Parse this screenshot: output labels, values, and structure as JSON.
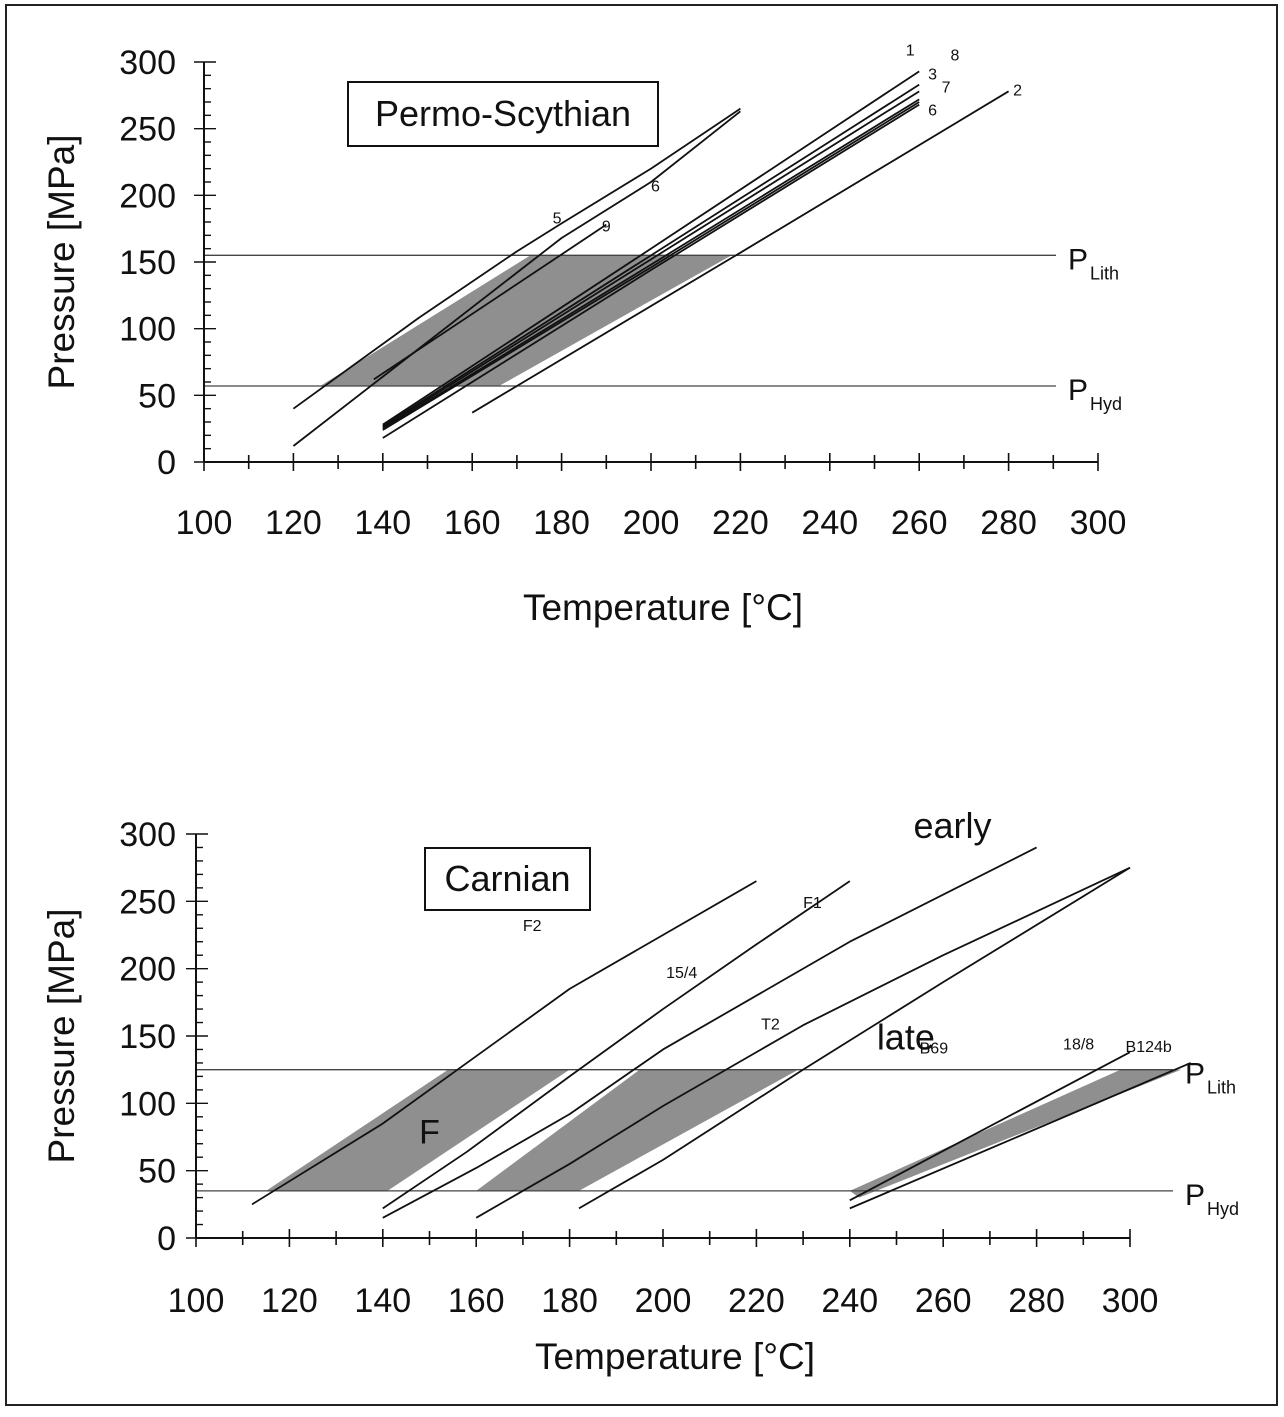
{
  "chart_data": [
    {
      "type": "line",
      "title": "Permo-Scythian",
      "xlabel": "Temperature [°C]",
      "ylabel": "Pressure [MPa]",
      "xlim": [
        100,
        300
      ],
      "ylim": [
        0,
        300
      ],
      "x_ticks": [
        100,
        120,
        140,
        160,
        180,
        200,
        220,
        240,
        260,
        280,
        300
      ],
      "y_ticks": [
        0,
        50,
        100,
        150,
        200,
        250,
        300
      ],
      "grid": false,
      "reference_lines": [
        {
          "name": "P",
          "sub": "Lith",
          "y": 155
        },
        {
          "name": "P",
          "sub": "Hyd",
          "y": 57
        }
      ],
      "shaded_regions": [
        {
          "points": [
            [
              126,
              57
            ],
            [
              173,
              155
            ],
            [
              218,
              155
            ],
            [
              166,
              57
            ]
          ]
        }
      ],
      "series": [
        {
          "label": "5",
          "points": [
            [
              120,
              40
            ],
            [
              148,
              108
            ],
            [
              170,
              158
            ],
            [
              180,
              179
            ],
            [
              200,
              220
            ],
            [
              220,
              265
            ]
          ],
          "label_at": [
            179,
            179
          ]
        },
        {
          "label": "6",
          "points": [
            [
              120,
              12
            ],
            [
              150,
              90
            ],
            [
              180,
              168
            ],
            [
              200,
              210
            ],
            [
              220,
              263
            ]
          ],
          "label_at": [
            201,
            203
          ]
        },
        {
          "label": "9",
          "points": [
            [
              138,
              62
            ],
            [
              190,
              178
            ]
          ],
          "label_at": [
            190,
            173
          ]
        },
        {
          "label": "1",
          "points": [
            [
              140,
              28
            ],
            [
              200,
              160
            ],
            [
              260,
              293
            ]
          ],
          "label_at": [
            258,
            305
          ]
        },
        {
          "label": "3",
          "points": [
            [
              140,
              27
            ],
            [
              200,
              155
            ],
            [
              260,
              283
            ]
          ],
          "label_at": [
            263,
            287
          ]
        },
        {
          "label": "7",
          "points": [
            [
              140,
              26
            ],
            [
              200,
              152
            ],
            [
              260,
              278
            ]
          ],
          "label_at": [
            266,
            277
          ]
        },
        {
          "label": "6",
          "points": [
            [
              140,
              25
            ],
            [
              200,
              148
            ],
            [
              260,
              272
            ]
          ],
          "label_at": [
            263,
            260
          ]
        },
        {
          "label": "8",
          "points": [
            [
              140,
              24
            ],
            [
              200,
              146
            ],
            [
              260,
              270
            ]
          ],
          "label_at": [
            268,
            301
          ]
        },
        {
          "label": "",
          "points": [
            [
              140,
              18
            ],
            [
              200,
              144
            ],
            [
              260,
              268
            ]
          ]
        },
        {
          "label": "2",
          "points": [
            [
              160,
              37
            ],
            [
              220,
              157
            ],
            [
              280,
              278
            ]
          ],
          "label_at": [
            282,
            275
          ]
        }
      ]
    },
    {
      "type": "line",
      "title": "Carnian",
      "xlabel": "Temperature [°C]",
      "ylabel": "Pressure [MPa]",
      "xlim": [
        100,
        300
      ],
      "ylim": [
        0,
        300
      ],
      "x_ticks": [
        100,
        120,
        140,
        160,
        180,
        200,
        220,
        240,
        260,
        280,
        300
      ],
      "y_ticks": [
        0,
        50,
        100,
        150,
        200,
        250,
        300
      ],
      "grid": false,
      "reference_lines": [
        {
          "name": "P",
          "sub": "Lith",
          "y": 125
        },
        {
          "name": "P",
          "sub": "Hyd",
          "y": 35
        }
      ],
      "shaded_regions": [
        {
          "points": [
            [
              115,
              35
            ],
            [
              154,
              125
            ],
            [
              180,
              125
            ],
            [
              141,
              35
            ]
          ]
        },
        {
          "points": [
            [
              160,
              35
            ],
            [
              195,
              125
            ],
            [
              229,
              125
            ],
            [
              182,
              35
            ]
          ]
        },
        {
          "points": [
            [
              240,
              35
            ],
            [
              298,
              125
            ],
            [
              311,
              125
            ],
            [
              242,
              30
            ]
          ]
        }
      ],
      "annotations": [
        {
          "text": "early",
          "x": 262,
          "y": 297
        },
        {
          "text": "late",
          "x": 252,
          "y": 140
        },
        {
          "text": "F",
          "x": 150,
          "y": 70
        }
      ],
      "series": [
        {
          "label": "F2",
          "points": [
            [
              112,
              25
            ],
            [
              140,
              85
            ],
            [
              160,
              135
            ],
            [
              180,
              185
            ],
            [
              220,
              265
            ]
          ],
          "label_at": [
            172,
            228
          ]
        },
        {
          "label": "F1",
          "points": [
            [
              140,
              22
            ],
            [
              158,
              64
            ],
            [
              180,
              120
            ],
            [
              200,
              170
            ],
            [
              220,
              218
            ],
            [
              240,
              265
            ]
          ],
          "label_at": [
            232,
            245
          ]
        },
        {
          "label": "15/4",
          "points": [
            [
              140,
              15
            ],
            [
              160,
              52
            ],
            [
              180,
              92
            ],
            [
              200,
              140
            ],
            [
              240,
              220
            ],
            [
              280,
              290
            ]
          ],
          "label_at": [
            204,
            193
          ]
        },
        {
          "label": "T2",
          "points": [
            [
              160,
              15
            ],
            [
              180,
              55
            ],
            [
              200,
              98
            ],
            [
              230,
              158
            ],
            [
              260,
              210
            ],
            [
              300,
              275
            ]
          ],
          "label_at": [
            223,
            155
          ]
        },
        {
          "label": "B69",
          "points": [
            [
              182,
              22
            ],
            [
              200,
              58
            ],
            [
              230,
              125
            ],
            [
              260,
              190
            ],
            [
              300,
              275
            ]
          ],
          "label_at": [
            258,
            137
          ]
        },
        {
          "label": "18/8",
          "points": [
            [
              240,
              28
            ],
            [
              300,
              138
            ]
          ],
          "label_at": [
            289,
            140
          ]
        },
        {
          "label": "B124b",
          "points": [
            [
              240,
              22
            ],
            [
              313,
              130
            ]
          ],
          "label_at": [
            304,
            138
          ]
        }
      ]
    }
  ]
}
